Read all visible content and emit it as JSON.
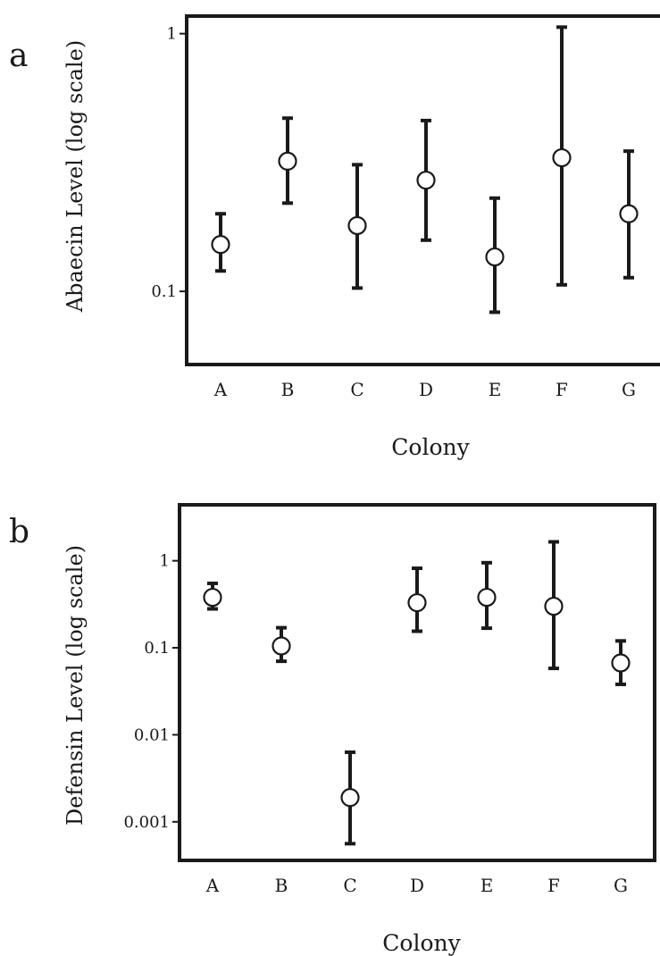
{
  "chart_data": [
    {
      "type": "scatter",
      "panel": "a",
      "xlabel": "Colony",
      "ylabel": "Abaecin Level (log scale)",
      "yscale": "log",
      "ylim": [
        0.052,
        1.17
      ],
      "yticks": [
        0.1,
        1
      ],
      "ytick_labels": [
        "0.1",
        "1"
      ],
      "categories": [
        "A",
        "B",
        "C",
        "D",
        "E",
        "F",
        "G"
      ],
      "series": [
        {
          "values": [
            0.152,
            0.32,
            0.18,
            0.27,
            0.136,
            0.33,
            0.2
          ],
          "lower": [
            0.12,
            0.22,
            0.103,
            0.158,
            0.083,
            0.106,
            0.113
          ],
          "upper": [
            0.2,
            0.47,
            0.31,
            0.46,
            0.23,
            1.06,
            0.35
          ]
        }
      ]
    },
    {
      "type": "scatter",
      "panel": "b",
      "xlabel": "Colony",
      "ylabel": "Defensin  Level (log scale)",
      "yscale": "log",
      "ylim": [
        0.00036,
        4.4
      ],
      "yticks": [
        0.001,
        0.01,
        0.1,
        1
      ],
      "ytick_labels": [
        "0.001",
        "0.01",
        "0.1",
        "1"
      ],
      "categories": [
        "A",
        "B",
        "C",
        "D",
        "E",
        "F",
        "G"
      ],
      "series": [
        {
          "values": [
            0.38,
            0.105,
            0.0019,
            0.33,
            0.38,
            0.3,
            0.067
          ],
          "lower": [
            0.28,
            0.07,
            0.00056,
            0.155,
            0.168,
            0.058,
            0.038
          ],
          "upper": [
            0.55,
            0.17,
            0.0063,
            0.82,
            0.95,
            1.65,
            0.12
          ]
        }
      ]
    }
  ]
}
